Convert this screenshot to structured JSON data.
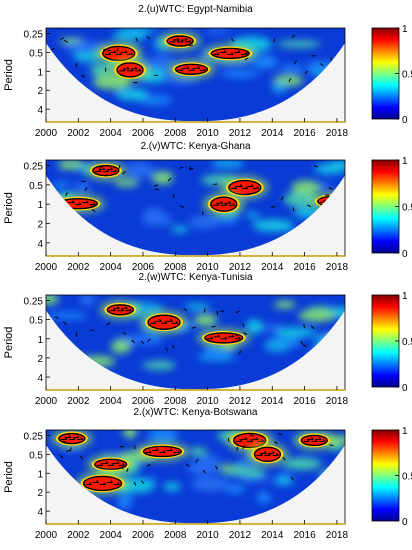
{
  "chart_data": [
    {
      "type": "heatmap",
      "title": "2.(u)WTC: Egypt-Namibia",
      "ylabel": "Period",
      "xlim": [
        2000,
        2018.5
      ],
      "x_ticks": [
        "2000",
        "2002",
        "2004",
        "2006",
        "2008",
        "2010",
        "2012",
        "2014",
        "2016",
        "2018"
      ],
      "y_ticks": [
        "0.25",
        "0.5",
        "1",
        "2",
        "4"
      ],
      "y_scale": "log2",
      "colorbar": {
        "range": [
          0,
          1
        ],
        "ticks": [
          "1",
          "0.5",
          "0"
        ]
      },
      "significant_regions": [
        {
          "year": 2008.3,
          "period": 0.33
        },
        {
          "year": 2004.5,
          "period": 0.52
        },
        {
          "year": 2011.4,
          "period": 0.52
        },
        {
          "year": 2005.2,
          "period": 0.95
        },
        {
          "year": 2009.0,
          "period": 0.93
        }
      ]
    },
    {
      "type": "heatmap",
      "title": "2.(v)WTC: Kenya-Ghana",
      "ylabel": "Period",
      "xlim": [
        2000,
        2018.5
      ],
      "x_ticks": [
        "2000",
        "2002",
        "2004",
        "2006",
        "2008",
        "2010",
        "2012",
        "2014",
        "2016",
        "2018"
      ],
      "y_ticks": [
        "0.25",
        "0.5",
        "1",
        "2",
        "4"
      ],
      "y_scale": "log2",
      "colorbar": {
        "range": [
          0,
          1
        ],
        "ticks": [
          "1",
          "0.5",
          "0"
        ]
      },
      "significant_regions": [
        {
          "year": 2003.7,
          "period": 0.3
        },
        {
          "year": 2012.3,
          "period": 0.55
        },
        {
          "year": 2002.0,
          "period": 0.98
        },
        {
          "year": 2011.0,
          "period": 1.0
        },
        {
          "year": 2017.8,
          "period": 0.9
        }
      ]
    },
    {
      "type": "heatmap",
      "title": "2.(w)WTC: Kenya-Tunisia",
      "ylabel": "Period",
      "xlim": [
        2000,
        2018.5
      ],
      "x_ticks": [
        "2000",
        "2002",
        "2004",
        "2006",
        "2008",
        "2010",
        "2012",
        "2014",
        "2016",
        "2018"
      ],
      "y_ticks": [
        "0.25",
        "0.5",
        "1",
        "2",
        "4"
      ],
      "y_scale": "log2",
      "colorbar": {
        "range": [
          0,
          1
        ],
        "ticks": [
          "1",
          "0.5",
          "0"
        ]
      },
      "significant_regions": [
        {
          "year": 2004.6,
          "period": 0.35
        },
        {
          "year": 2007.3,
          "period": 0.55
        },
        {
          "year": 2011.0,
          "period": 0.97
        }
      ]
    },
    {
      "type": "heatmap",
      "title": "2.(x)WTC: Kenya-Botswana",
      "ylabel": "Period",
      "xlim": [
        2000,
        2018.5
      ],
      "x_ticks": [
        "2000",
        "2002",
        "2004",
        "2006",
        "2008",
        "2010",
        "2012",
        "2014",
        "2016",
        "2018"
      ],
      "y_ticks": [
        "0.25",
        "0.5",
        "1",
        "2",
        "4"
      ],
      "y_scale": "log2",
      "colorbar": {
        "range": [
          0,
          1
        ],
        "ticks": [
          "1",
          "0.5",
          "0"
        ]
      },
      "significant_regions": [
        {
          "year": 2001.6,
          "period": 0.28
        },
        {
          "year": 2012.6,
          "period": 0.3
        },
        {
          "year": 2007.2,
          "period": 0.45
        },
        {
          "year": 2013.7,
          "period": 0.5
        },
        {
          "year": 2004.0,
          "period": 0.72
        },
        {
          "year": 2003.5,
          "period": 1.45
        },
        {
          "year": 2016.6,
          "period": 0.3
        }
      ]
    }
  ],
  "colors": {
    "outside_cone": "#f4f4f4",
    "cone_fill": "#0a3bd6",
    "hot": "#ff1800",
    "arrow": "#000000",
    "axis_line": "#c8a000"
  }
}
